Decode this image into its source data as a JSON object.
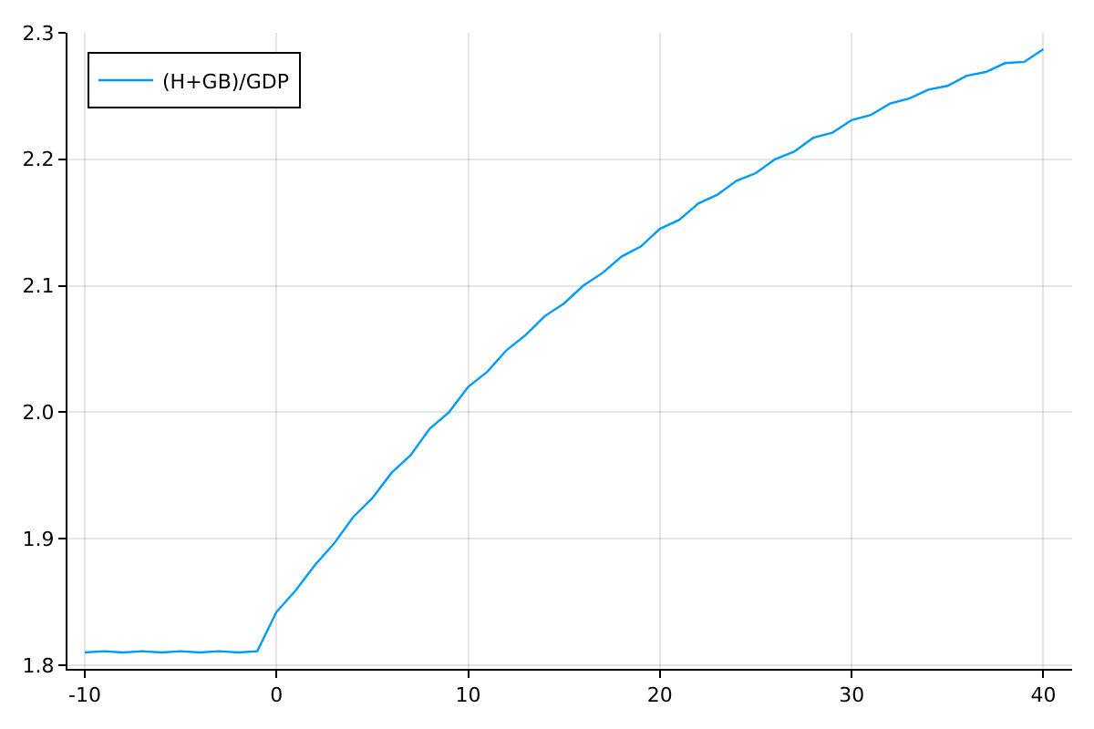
{
  "chart_data": {
    "type": "line",
    "x": [
      -10,
      -9,
      -8,
      -7,
      -6,
      -5,
      -4,
      -3,
      -2,
      -1,
      0,
      1,
      2,
      3,
      4,
      5,
      6,
      7,
      8,
      9,
      10,
      11,
      12,
      13,
      14,
      15,
      16,
      17,
      18,
      19,
      20,
      21,
      22,
      23,
      24,
      25,
      26,
      27,
      28,
      29,
      30,
      31,
      32,
      33,
      34,
      35,
      36,
      37,
      38,
      39,
      40
    ],
    "series": [
      {
        "name": "(H+GB)/GDP",
        "color": "#009af9",
        "values": [
          1.81,
          1.811,
          1.81,
          1.811,
          1.81,
          1.811,
          1.81,
          1.811,
          1.81,
          1.811,
          1.842,
          1.859,
          1.879,
          1.896,
          1.917,
          1.932,
          1.952,
          1.966,
          1.987,
          2.0,
          2.02,
          2.032,
          2.049,
          2.061,
          2.076,
          2.086,
          2.1,
          2.11,
          2.123,
          2.131,
          2.145,
          2.152,
          2.165,
          2.172,
          2.183,
          2.189,
          2.2,
          2.206,
          2.217,
          2.221,
          2.231,
          2.235,
          2.244,
          2.248,
          2.255,
          2.258,
          2.266,
          2.269,
          2.276,
          2.277,
          2.287
        ]
      }
    ],
    "xlim": [
      -10.9,
      41.5
    ],
    "ylim": [
      1.797,
      2.3
    ],
    "xticks": [
      -10,
      0,
      10,
      20,
      30,
      40
    ],
    "yticks": [
      1.8,
      1.9,
      {
        "value": 2,
        "label": "2.0"
      },
      2.1,
      2.2,
      2.3
    ],
    "grid": true,
    "legend": "top left",
    "marker": "none",
    "line_style": "solid"
  }
}
